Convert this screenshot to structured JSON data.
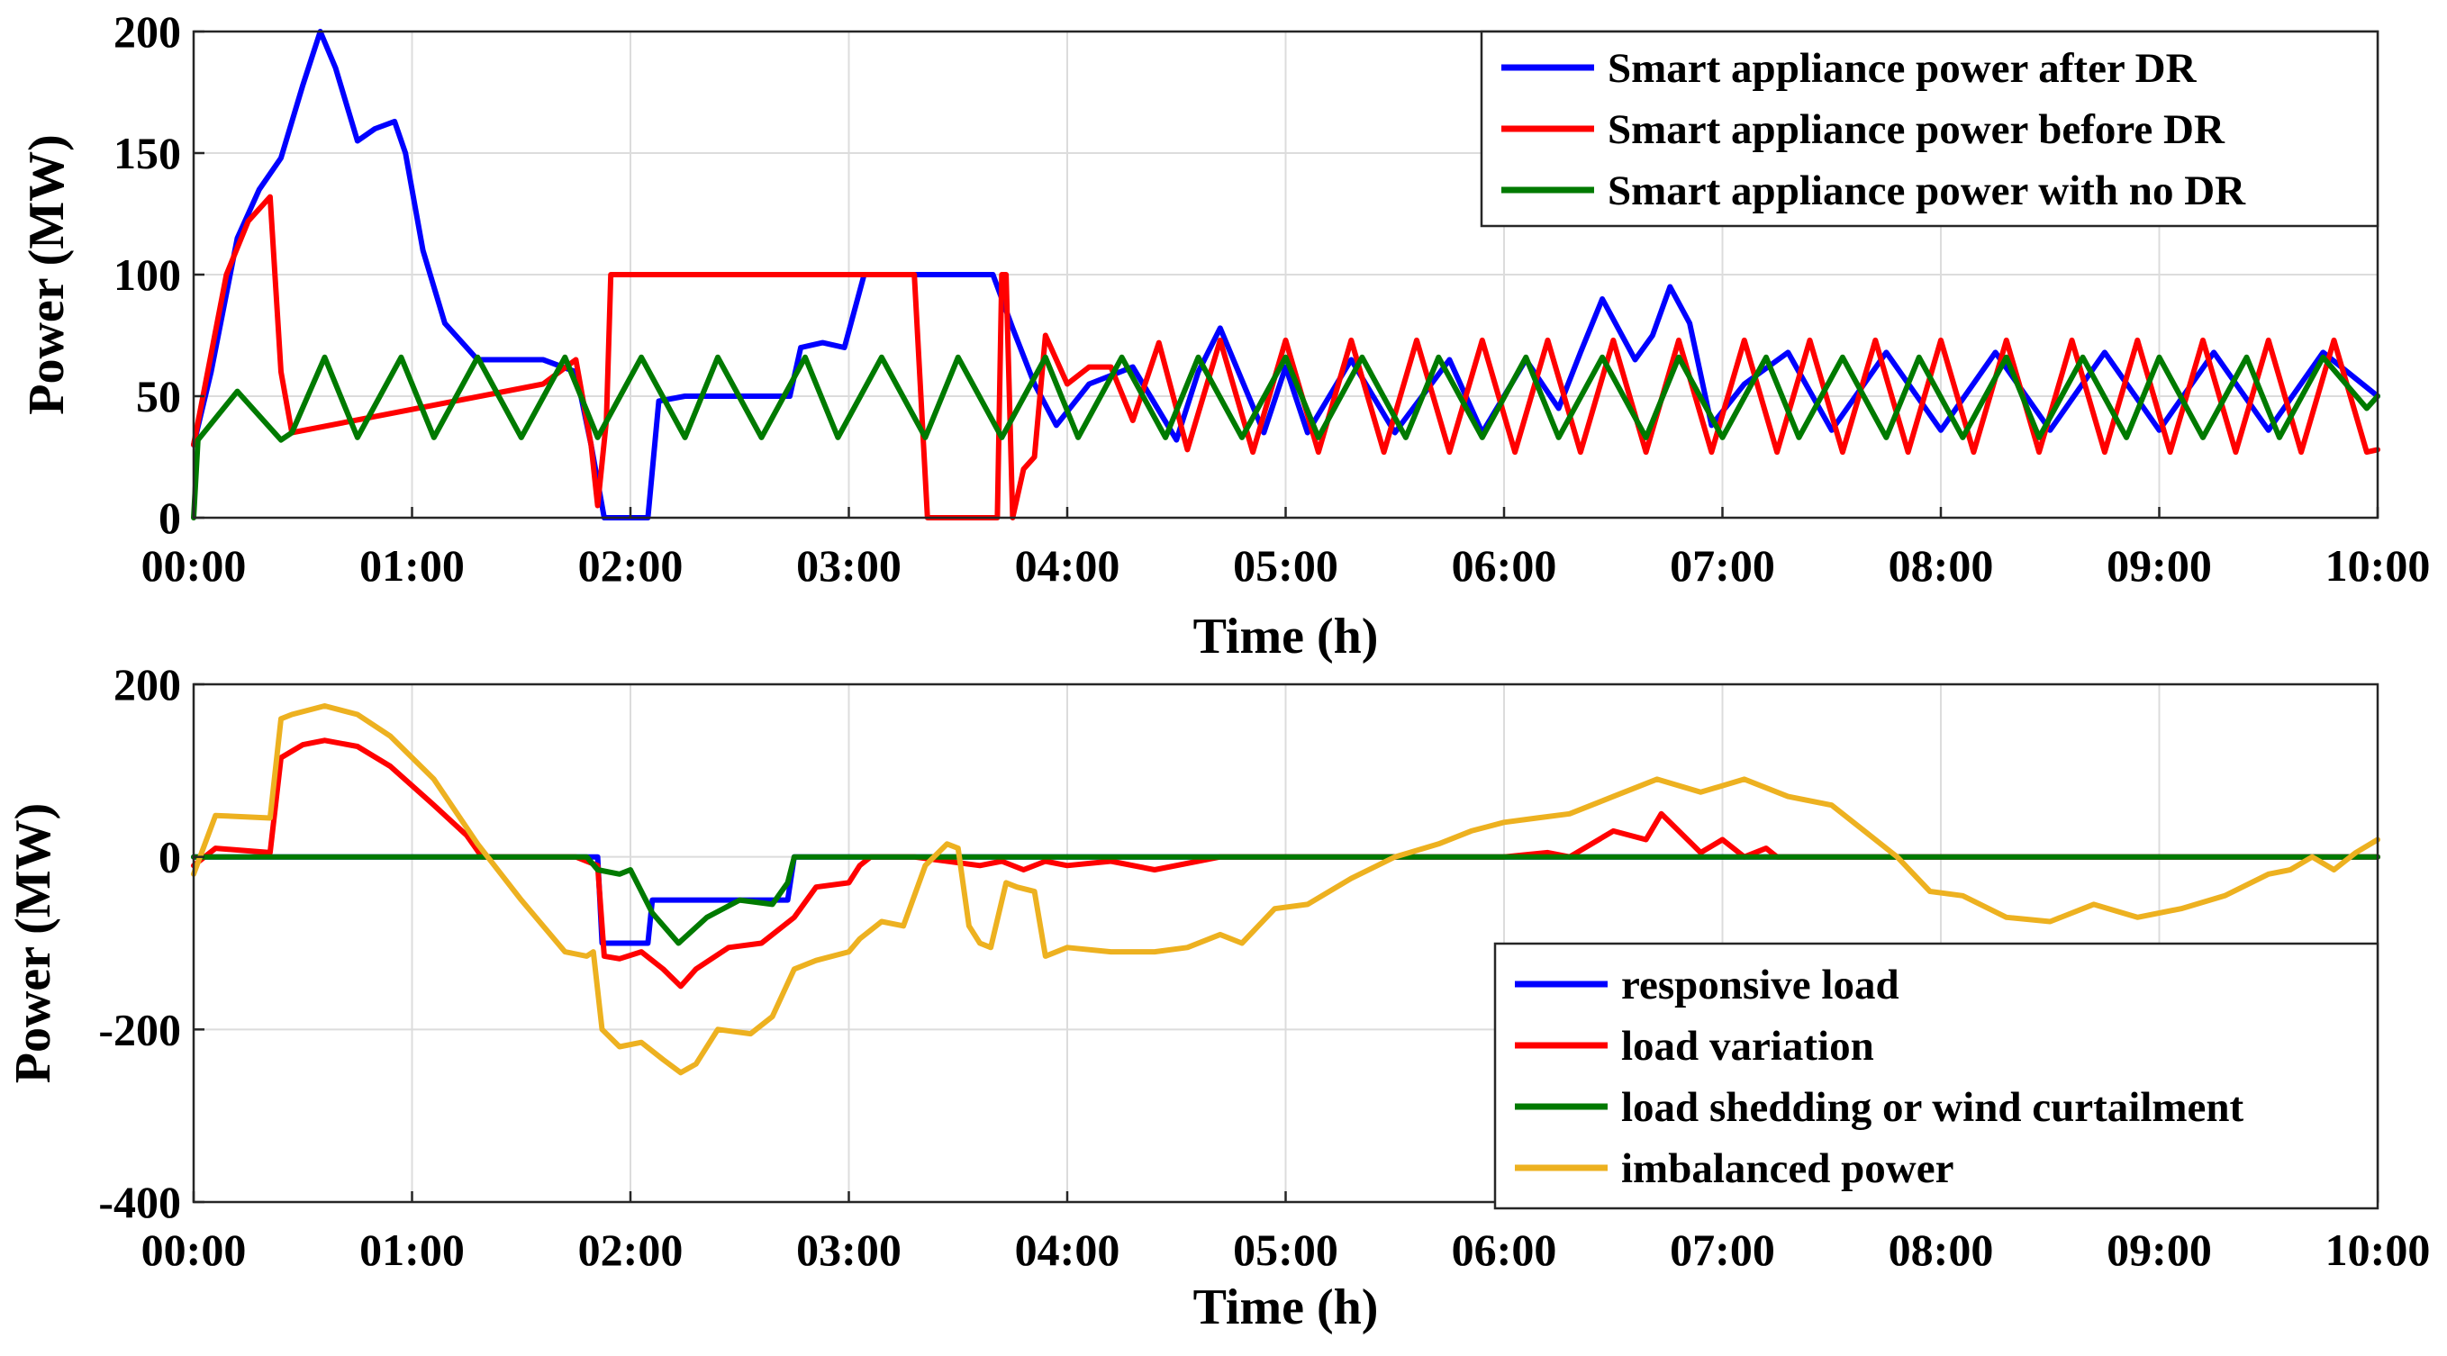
{
  "chart_data": [
    {
      "type": "line",
      "title": "",
      "xlabel": "Time (h)",
      "ylabel": "Power (MW)",
      "xlim": [
        0,
        10
      ],
      "ylim": [
        0,
        200
      ],
      "x_ticks": [
        0,
        1,
        2,
        3,
        4,
        5,
        6,
        7,
        8,
        9,
        10
      ],
      "x_tick_labels": [
        "00:00",
        "01:00",
        "02:00",
        "03:00",
        "04:00",
        "05:00",
        "06:00",
        "07:00",
        "08:00",
        "09:00",
        "10:00"
      ],
      "y_ticks": [
        0,
        50,
        100,
        150,
        200
      ],
      "y_tick_labels": [
        "0",
        "50",
        "100",
        "150",
        "200"
      ],
      "grid": true,
      "legend_position": "top-right",
      "series": [
        {
          "name": "Smart appliance power after DR",
          "color": "#0000ff",
          "x": [
            0,
            0.08,
            0.2,
            0.3,
            0.4,
            0.5,
            0.58,
            0.65,
            0.75,
            0.83,
            0.92,
            0.97,
            1.05,
            1.15,
            1.3,
            1.45,
            1.6,
            1.75,
            1.82,
            1.88,
            2.08,
            2.13,
            2.25,
            2.5,
            2.73,
            2.78,
            2.88,
            2.98,
            3.07,
            3.3,
            3.45,
            3.58,
            3.66,
            3.75,
            3.85,
            3.95,
            4.1,
            4.3,
            4.5,
            4.6,
            4.7,
            4.9,
            5.0,
            5.1,
            5.3,
            5.5,
            5.75,
            5.9,
            6.1,
            6.25,
            6.35,
            6.45,
            6.6,
            6.68,
            6.76,
            6.85,
            6.95,
            7.1,
            7.3,
            7.5,
            7.75,
            8.0,
            8.25,
            8.5,
            8.75,
            9.0,
            9.25,
            9.5,
            9.75,
            10.0
          ],
          "y": [
            30,
            60,
            115,
            135,
            148,
            178,
            200,
            185,
            155,
            160,
            163,
            150,
            110,
            80,
            65,
            65,
            65,
            60,
            30,
            0,
            0,
            48,
            50,
            50,
            50,
            70,
            72,
            70,
            100,
            100,
            100,
            100,
            100,
            78,
            55,
            38,
            55,
            62,
            32,
            60,
            78,
            35,
            62,
            35,
            65,
            35,
            65,
            35,
            65,
            45,
            68,
            90,
            65,
            75,
            95,
            80,
            38,
            55,
            68,
            36,
            68,
            36,
            68,
            36,
            68,
            36,
            68,
            36,
            68,
            50
          ]
        },
        {
          "name": "Smart appliance power before DR",
          "color": "#ff0000",
          "x": [
            0,
            0.15,
            0.25,
            0.35,
            0.4,
            0.45,
            1.6,
            1.75,
            1.82,
            1.85,
            1.89,
            1.91,
            1.95,
            2.5,
            3.0,
            3.3,
            3.36,
            3.38,
            3.6,
            3.68,
            3.7,
            3.72,
            3.75,
            3.8,
            3.85,
            3.9,
            4.0,
            4.1,
            4.2,
            4.3,
            4.42,
            4.55,
            4.7,
            4.85,
            5.0,
            5.15,
            5.3,
            5.45,
            5.6,
            5.75,
            5.9,
            6.05,
            6.2,
            6.35,
            6.5,
            6.65,
            6.8,
            6.95,
            7.1,
            7.25,
            7.4,
            7.55,
            7.7,
            7.85,
            8.0,
            8.15,
            8.3,
            8.45,
            8.6,
            8.75,
            8.9,
            9.05,
            9.2,
            9.35,
            9.5,
            9.65,
            9.8,
            9.95,
            10.0
          ],
          "y": [
            30,
            100,
            122,
            132,
            60,
            35,
            55,
            65,
            30,
            5,
            40,
            100,
            100,
            100,
            100,
            100,
            0,
            0,
            0,
            0,
            100,
            100,
            0,
            20,
            25,
            75,
            55,
            62,
            62,
            40,
            72,
            28,
            73,
            27,
            73,
            27,
            73,
            27,
            73,
            27,
            73,
            27,
            73,
            27,
            73,
            27,
            73,
            27,
            73,
            27,
            73,
            27,
            73,
            27,
            73,
            27,
            73,
            27,
            73,
            27,
            73,
            27,
            73,
            27,
            73,
            27,
            73,
            27,
            28
          ]
        },
        {
          "name": "Smart appliance power with no DR",
          "color": "#007a00",
          "x": [
            0,
            0.02,
            0.2,
            0.4,
            0.45,
            0.6,
            0.75,
            0.95,
            1.1,
            1.3,
            1.5,
            1.7,
            1.85,
            2.05,
            2.25,
            2.4,
            2.6,
            2.8,
            2.95,
            3.15,
            3.35,
            3.5,
            3.7,
            3.9,
            4.05,
            4.25,
            4.45,
            4.6,
            4.8,
            5.0,
            5.15,
            5.35,
            5.55,
            5.7,
            5.9,
            6.1,
            6.25,
            6.45,
            6.65,
            6.8,
            7.0,
            7.2,
            7.35,
            7.55,
            7.75,
            7.9,
            8.1,
            8.3,
            8.45,
            8.65,
            8.85,
            9.0,
            9.2,
            9.4,
            9.55,
            9.75,
            9.95,
            10.0
          ],
          "y": [
            0,
            32,
            52,
            32,
            35,
            66,
            33,
            66,
            33,
            66,
            33,
            66,
            33,
            66,
            33,
            66,
            33,
            66,
            33,
            66,
            33,
            66,
            33,
            66,
            33,
            66,
            33,
            66,
            33,
            66,
            33,
            66,
            33,
            66,
            33,
            66,
            33,
            66,
            33,
            66,
            33,
            66,
            33,
            66,
            33,
            66,
            33,
            66,
            33,
            66,
            33,
            66,
            33,
            66,
            33,
            66,
            45,
            50
          ]
        }
      ]
    },
    {
      "type": "line",
      "title": "",
      "xlabel": "Time (h)",
      "ylabel": "Power (MW)",
      "xlim": [
        0,
        10
      ],
      "ylim": [
        -400,
        200
      ],
      "x_ticks": [
        0,
        1,
        2,
        3,
        4,
        5,
        6,
        7,
        8,
        9,
        10
      ],
      "x_tick_labels": [
        "00:00",
        "01:00",
        "02:00",
        "03:00",
        "04:00",
        "05:00",
        "06:00",
        "07:00",
        "08:00",
        "09:00",
        "10:00"
      ],
      "y_ticks": [
        -400,
        -200,
        0,
        200
      ],
      "y_tick_labels": [
        "-400",
        "-200",
        "0",
        "200"
      ],
      "grid": true,
      "legend_position": "bottom-right",
      "series": [
        {
          "name": "responsive load",
          "color": "#0000ff",
          "x": [
            0,
            1.85,
            1.87,
            2.08,
            2.1,
            2.6,
            2.72,
            2.75,
            10.0
          ],
          "y": [
            0,
            0,
            -100,
            -100,
            -50,
            -50,
            -50,
            0,
            0
          ]
        },
        {
          "name": "load variation",
          "color": "#ff0000",
          "x": [
            0,
            0.1,
            0.35,
            0.4,
            0.5,
            0.6,
            0.75,
            0.9,
            1.1,
            1.25,
            1.32,
            1.75,
            1.85,
            1.88,
            1.95,
            2.05,
            2.15,
            2.23,
            2.3,
            2.45,
            2.6,
            2.75,
            2.85,
            3.0,
            3.05,
            3.1,
            3.3,
            3.6,
            3.7,
            3.8,
            3.9,
            4.0,
            4.2,
            4.4,
            4.7,
            4.72,
            5.5,
            6.0,
            6.2,
            6.3,
            6.5,
            6.65,
            6.72,
            6.8,
            6.9,
            7.0,
            7.1,
            7.2,
            7.25,
            10.0
          ],
          "y": [
            -10,
            10,
            5,
            115,
            130,
            135,
            128,
            105,
            60,
            25,
            0,
            0,
            -10,
            -115,
            -118,
            -110,
            -130,
            -150,
            -130,
            -105,
            -100,
            -70,
            -35,
            -30,
            -10,
            0,
            0,
            -10,
            -5,
            -15,
            -5,
            -10,
            -5,
            -15,
            0,
            0,
            0,
            0,
            5,
            0,
            30,
            20,
            50,
            30,
            5,
            20,
            0,
            10,
            0,
            0
          ]
        },
        {
          "name": "load shedding or wind curtailment",
          "color": "#007a00",
          "x": [
            0,
            1.8,
            1.85,
            1.95,
            2.0,
            2.1,
            2.22,
            2.35,
            2.5,
            2.65,
            2.72,
            2.75,
            10.0
          ],
          "y": [
            0,
            0,
            -15,
            -20,
            -15,
            -65,
            -100,
            -70,
            -50,
            -55,
            -30,
            0,
            0
          ]
        },
        {
          "name": "imbalanced power",
          "color": "#edb120",
          "x": [
            0,
            0.1,
            0.35,
            0.4,
            0.45,
            0.6,
            0.75,
            0.9,
            1.1,
            1.3,
            1.5,
            1.7,
            1.8,
            1.83,
            1.87,
            1.95,
            2.05,
            2.15,
            2.23,
            2.3,
            2.4,
            2.55,
            2.65,
            2.75,
            2.85,
            3.0,
            3.05,
            3.15,
            3.25,
            3.35,
            3.45,
            3.5,
            3.55,
            3.6,
            3.65,
            3.72,
            3.77,
            3.85,
            3.9,
            4.0,
            4.2,
            4.4,
            4.55,
            4.7,
            4.8,
            4.95,
            5.1,
            5.3,
            5.5,
            5.7,
            5.85,
            6.0,
            6.15,
            6.3,
            6.5,
            6.7,
            6.9,
            7.1,
            7.3,
            7.5,
            7.65,
            7.8,
            7.95,
            8.1,
            8.3,
            8.5,
            8.7,
            8.9,
            9.1,
            9.3,
            9.5,
            9.6,
            9.7,
            9.8,
            9.9,
            10.0
          ],
          "y": [
            -20,
            48,
            45,
            160,
            165,
            175,
            165,
            140,
            90,
            15,
            -50,
            -110,
            -115,
            -110,
            -200,
            -220,
            -215,
            -235,
            -250,
            -240,
            -200,
            -205,
            -185,
            -130,
            -120,
            -110,
            -95,
            -75,
            -80,
            -10,
            15,
            10,
            -80,
            -100,
            -105,
            -30,
            -35,
            -40,
            -115,
            -105,
            -110,
            -110,
            -105,
            -90,
            -100,
            -60,
            -55,
            -25,
            0,
            15,
            30,
            40,
            45,
            50,
            70,
            90,
            75,
            90,
            70,
            60,
            30,
            0,
            -40,
            -45,
            -70,
            -75,
            -55,
            -70,
            -60,
            -45,
            -20,
            -15,
            0,
            -15,
            5,
            20
          ]
        }
      ]
    }
  ]
}
